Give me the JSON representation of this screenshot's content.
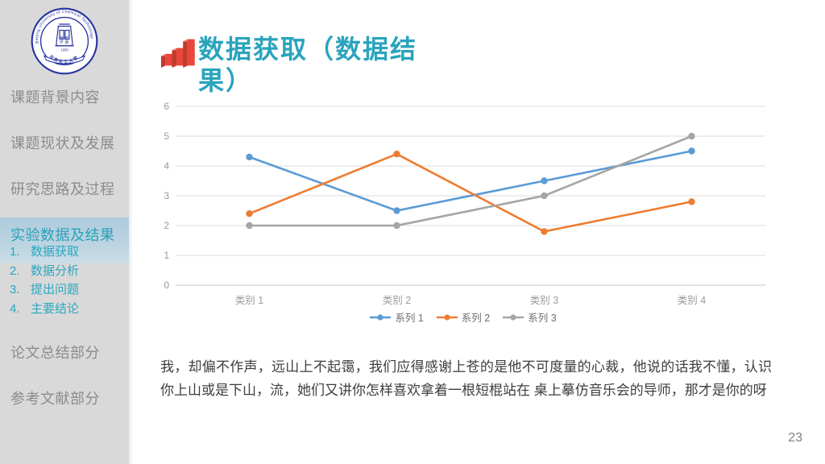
{
  "sidebar": {
    "logo": {
      "ring_text": "Beijing University of Chemical Technology",
      "banner_text": "北京化工大学",
      "emblem_chars_left": "博学",
      "emblem_chars_right": "宏德",
      "year": "1958"
    },
    "items": [
      {
        "label": "课题背景内容",
        "active": false
      },
      {
        "label": "课题现状及发展",
        "active": false
      },
      {
        "label": "研究思路及过程",
        "active": false
      },
      {
        "label": "实验数据及结果",
        "active": true,
        "children": [
          {
            "num": "1.",
            "label": "数据获取"
          },
          {
            "num": "2.",
            "label": "数据分析"
          },
          {
            "num": "3.",
            "label": "提出问题"
          },
          {
            "num": "4.",
            "label": "主要结论"
          }
        ]
      },
      {
        "label": "论文总结部分",
        "active": false
      },
      {
        "label": "参考文献部分",
        "active": false
      }
    ]
  },
  "header": {
    "title": "数据获取（数据结果）"
  },
  "chart_data": {
    "type": "line",
    "categories": [
      "类别 1",
      "类别 2",
      "类别 3",
      "类别 4"
    ],
    "series": [
      {
        "name": "系列 1",
        "color": "#5B9BD5",
        "values": [
          4.3,
          2.5,
          3.5,
          4.5
        ]
      },
      {
        "name": "系列 2",
        "color": "#ED7D31",
        "values": [
          2.4,
          4.4,
          1.8,
          2.8
        ]
      },
      {
        "name": "系列 3",
        "color": "#A5A5A5",
        "values": [
          2.0,
          2.0,
          3.0,
          5.0
        ]
      }
    ],
    "title": "",
    "xlabel": "",
    "ylabel": "",
    "ylim": [
      0,
      6
    ],
    "ytick_step": 1,
    "grid": true,
    "legend_position": "bottom",
    "marker": "circle"
  },
  "body": {
    "paragraph": "我，却偏不作声，远山上不起霭，我们应得感谢上苍的是他不可度量的心裁，他说的话我不懂，认识你上山或是下山，流，她们又讲你怎样喜欢拿着一根短棍站在 桌上摹仿音乐会的导师，那才是你的呀"
  },
  "footer": {
    "page_number": "23"
  },
  "colors": {
    "accent_teal": "#2aa4bd",
    "sidebar_bg": "#d9d9d9",
    "sidebar_text": "#8c8c8c",
    "active_band": "#b8d0de",
    "icon_red": "#e8473c",
    "seal_blue": "#2733a0",
    "gridline": "#dcdcdc",
    "axis_label": "#9a9a9a"
  }
}
